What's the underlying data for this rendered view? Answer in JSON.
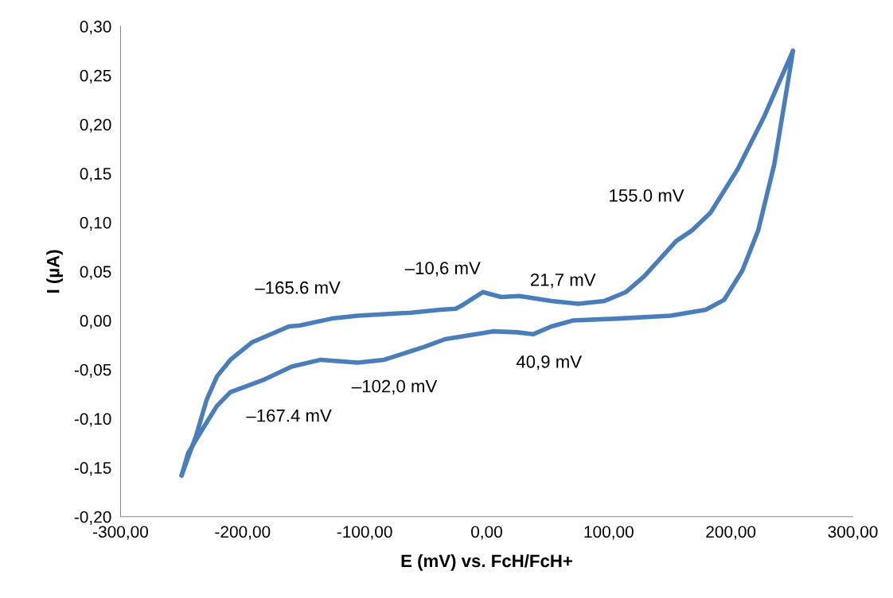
{
  "chart_data": {
    "type": "line",
    "xlabel": "E (mV) vs. FcH/FcH+",
    "ylabel": "I (µA)",
    "series": [
      {
        "color": "#4a7ebb",
        "x": [
          -250,
          -238,
          -229.5,
          -221,
          -210,
          -192,
          -162,
          -153,
          -127,
          -105.6,
          -62,
          -38.2,
          -25.4,
          -20.8,
          -3.2,
          11.8,
          26.8,
          53,
          75,
          96.6,
          114,
          129,
          155.3,
          168.4,
          183.4,
          205.5,
          227,
          240,
          251
        ],
        "values": [
          -0.158,
          -0.117,
          -0.081,
          -0.057,
          -0.04,
          -0.022,
          -0.006,
          -0.005,
          0.002,
          0.005,
          0.008,
          0.011,
          0.012,
          0.015,
          0.029,
          0.024,
          0.025,
          0.02,
          0.017,
          0.02,
          0.029,
          0.045,
          0.081,
          0.092,
          0.11,
          0.154,
          0.207,
          0.244,
          0.275
        ]
      },
      {
        "color": "#4a7ebb",
        "x": [
          251,
          244.7,
          235.6,
          222.5,
          209.5,
          194.5,
          179.5,
          150.7,
          107.7,
          70.5,
          53,
          38,
          25,
          5.2,
          -18.8,
          -34,
          -51.5,
          -84,
          -105.6,
          -136,
          -159.8,
          -181.9,
          -210,
          -221,
          -231.5,
          -244.6,
          -250
        ],
        "values": [
          0.275,
          0.227,
          0.159,
          0.092,
          0.051,
          0.021,
          0.011,
          0.005,
          0.002,
          0.0,
          -0.006,
          -0.014,
          -0.012,
          -0.011,
          -0.016,
          -0.019,
          -0.027,
          -0.04,
          -0.043,
          -0.04,
          -0.047,
          -0.06,
          -0.073,
          -0.087,
          -0.108,
          -0.135,
          -0.158
        ]
      }
    ],
    "xlim": [
      -300,
      300
    ],
    "ylim": [
      -0.2,
      0.3
    ],
    "xticks": [
      {
        "value": -300,
        "label": "-300,00"
      },
      {
        "value": -200,
        "label": "-200,00"
      },
      {
        "value": -100,
        "label": "-100,00"
      },
      {
        "value": 0,
        "label": "0,00"
      },
      {
        "value": 100,
        "label": "100,00"
      },
      {
        "value": 200,
        "label": "200,00"
      },
      {
        "value": 300,
        "label": "300,00"
      }
    ],
    "yticks": [
      {
        "value": -0.2,
        "label": "-0,20"
      },
      {
        "value": -0.15,
        "label": "-0,15"
      },
      {
        "value": -0.1,
        "label": "-0,10"
      },
      {
        "value": -0.05,
        "label": "-0,05"
      },
      {
        "value": 0,
        "label": "0,00"
      },
      {
        "value": 0.05,
        "label": "0,05"
      },
      {
        "value": 0.1,
        "label": "0,10"
      },
      {
        "value": 0.15,
        "label": "0,15"
      },
      {
        "value": 0.2,
        "label": "0,20"
      },
      {
        "value": 0.25,
        "label": "0,25"
      },
      {
        "value": 0.3,
        "label": "0,30"
      }
    ],
    "grid": false,
    "marker": "none",
    "line_style": "solid",
    "annotations": [
      "–165.6 mV",
      "–10,6 mV",
      "21,7 mV",
      "155.0 mV",
      "40,9 mV",
      "–102,0 mV",
      "–167.4 mV"
    ]
  }
}
